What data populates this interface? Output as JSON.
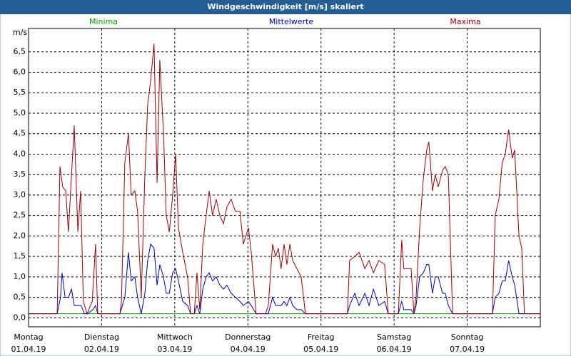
{
  "chart_data": {
    "type": "line",
    "title": "Windgeschwindigkeit [m/s] skaliert",
    "y_label": "m/s",
    "xlim": [
      0,
      168
    ],
    "ylim": [
      -0.22,
      7.07
    ],
    "xticks": [
      {
        "value": 0,
        "label": "Montag",
        "date": "01.04.19"
      },
      {
        "value": 24,
        "label": "Dienstag",
        "date": "02.04.19"
      },
      {
        "value": 48,
        "label": "Mittwoch",
        "date": "03.04.19"
      },
      {
        "value": 72,
        "label": "Donnerstag",
        "date": "04.04.19"
      },
      {
        "value": 96,
        "label": "Freitag",
        "date": "05.04.19"
      },
      {
        "value": 120,
        "label": "Samstag",
        "date": "06.04.19"
      },
      {
        "value": 144,
        "label": "Sonntag",
        "date": "07.04.19"
      }
    ],
    "yticks": [
      {
        "value": 0,
        "label": "0,0"
      },
      {
        "value": 0.5,
        "label": "0,5"
      },
      {
        "value": 1,
        "label": "1,0"
      },
      {
        "value": 1.5,
        "label": "1,5"
      },
      {
        "value": 2,
        "label": "2,0"
      },
      {
        "value": 2.5,
        "label": "2,5"
      },
      {
        "value": 3,
        "label": "3,0"
      },
      {
        "value": 3.5,
        "label": "3,5"
      },
      {
        "value": 4,
        "label": "4,0"
      },
      {
        "value": 4.5,
        "label": "4,5"
      },
      {
        "value": 5,
        "label": "5,0"
      },
      {
        "value": 5.5,
        "label": "5,5"
      },
      {
        "value": 6,
        "label": "6,0"
      },
      {
        "value": 6.5,
        "label": "6,5"
      }
    ],
    "grid": true,
    "series": [
      {
        "name": "Minima",
        "color": "#00a000",
        "x": [
          0,
          168
        ],
        "values": [
          0.1,
          0.1
        ]
      },
      {
        "name": "Mittelwerte",
        "color": "#0000c0",
        "x": [
          0,
          9.4,
          10.5,
          11.0,
          12.0,
          13.1,
          14.1,
          15.0,
          16.4,
          17.3,
          18.3,
          19.4,
          21.1,
          22.0,
          22.7,
          30.0,
          31.6,
          32.8,
          33.7,
          34.9,
          35.8,
          37.0,
          38.2,
          39.1,
          40.1,
          41.2,
          42.2,
          43.1,
          44.3,
          45.2,
          46.2,
          47.3,
          48.3,
          49.2,
          50.6,
          52.2,
          53.2,
          54.4,
          55.3,
          56.2,
          57.2,
          58.3,
          59.3,
          60.4,
          61.6,
          62.8,
          64.0,
          65.1,
          66.5,
          67.9,
          69.4,
          70.5,
          72.2,
          73.1,
          74.7,
          77.8,
          78.7,
          80.1,
          81.1,
          82.0,
          82.9,
          83.9,
          84.8,
          85.8,
          86.7,
          88.1,
          89.5,
          90.9,
          104.7,
          105.4,
          107.1,
          108.5,
          110.4,
          111.8,
          113.2,
          115.0,
          116.9,
          118.1,
          121.4,
          122.5,
          123.2,
          125.6,
          126.5,
          127.2,
          128.4,
          129.6,
          130.7,
          131.4,
          132.6,
          133.5,
          134.5,
          135.9,
          136.8,
          137.8,
          139.2,
          152.3,
          153.2,
          154.4,
          155.5,
          156.5,
          157.6,
          158.8,
          159.6,
          161.0,
          168
        ],
        "values": [
          0.1,
          0.1,
          0.5,
          1.1,
          0.5,
          0.5,
          0.7,
          0.3,
          0.3,
          0.3,
          0.1,
          0.1,
          0.2,
          0.3,
          0.1,
          0.1,
          0.5,
          1.6,
          0.9,
          1.0,
          0.5,
          0.1,
          0.6,
          1.4,
          1.8,
          1.7,
          0.8,
          1.3,
          1.0,
          0.6,
          0.6,
          1.1,
          1.2,
          0.9,
          0.4,
          0.3,
          0.1,
          0.1,
          0.3,
          0.1,
          0.7,
          1.0,
          1.1,
          0.9,
          1.0,
          0.8,
          0.7,
          0.8,
          0.6,
          0.5,
          0.4,
          0.3,
          0.4,
          0.3,
          0.1,
          0.1,
          0.1,
          0.5,
          0.3,
          0.3,
          0.3,
          0.4,
          0.3,
          0.5,
          0.3,
          0.2,
          0.2,
          0.1,
          0.1,
          0.3,
          0.6,
          0.3,
          0.6,
          0.3,
          0.7,
          0.3,
          0.4,
          0.1,
          0.1,
          0.4,
          0.2,
          0.2,
          0.1,
          0.3,
          1.0,
          1.1,
          1.3,
          1.3,
          0.6,
          1.0,
          1.0,
          0.6,
          0.6,
          0.3,
          0.1,
          0.1,
          0.5,
          0.6,
          0.9,
          0.9,
          1.4,
          1.0,
          0.8,
          0.1,
          0.1
        ]
      },
      {
        "name": "Maxima",
        "color": "#a00000",
        "x": [
          0,
          9.4,
          10.3,
          11.2,
          12.2,
          13.1,
          14.1,
          15.0,
          16.2,
          17.1,
          18.0,
          19.2,
          20.9,
          22.0,
          22.7,
          30.0,
          30.5,
          31.6,
          32.8,
          33.7,
          34.9,
          35.8,
          37.0,
          38.2,
          39.1,
          40.1,
          41.2,
          42.2,
          43.1,
          44.3,
          45.2,
          46.2,
          47.3,
          48.3,
          49.2,
          50.6,
          52.2,
          53.2,
          54.4,
          55.3,
          56.2,
          57.2,
          58.3,
          59.3,
          60.4,
          61.6,
          62.8,
          64.0,
          65.1,
          66.5,
          67.9,
          69.4,
          70.5,
          72.2,
          73.1,
          74.7,
          77.8,
          78.7,
          80.1,
          81.1,
          82.0,
          82.9,
          83.9,
          84.8,
          85.8,
          86.7,
          88.1,
          89.5,
          90.9,
          104.7,
          105.4,
          107.1,
          108.5,
          110.4,
          111.8,
          113.2,
          115.0,
          116.9,
          118.1,
          121.4,
          122.5,
          123.2,
          125.6,
          126.5,
          127.2,
          128.4,
          129.6,
          130.7,
          131.4,
          132.6,
          133.5,
          134.5,
          135.9,
          136.8,
          137.8,
          139.2,
          152.3,
          153.2,
          154.4,
          155.5,
          156.5,
          157.6,
          158.8,
          159.6,
          161.0,
          161.9,
          162.8,
          168
        ],
        "values": [
          0.1,
          0.1,
          3.7,
          3.2,
          3.1,
          2.1,
          3.5,
          4.7,
          2.1,
          3.1,
          0.4,
          0.1,
          0.4,
          1.8,
          0.1,
          0.1,
          0.4,
          3.8,
          4.5,
          3.0,
          3.1,
          2.6,
          0.5,
          3.5,
          5.2,
          5.8,
          6.7,
          3.3,
          6.3,
          4.5,
          2.5,
          2.1,
          3.0,
          4.0,
          2.2,
          1.6,
          1.0,
          0.1,
          0.1,
          1.1,
          0.2,
          1.8,
          2.5,
          3.1,
          2.5,
          2.9,
          2.5,
          2.3,
          2.7,
          2.9,
          2.6,
          2.6,
          1.8,
          2.2,
          1.6,
          0.1,
          0.1,
          0.3,
          1.8,
          1.5,
          1.7,
          1.2,
          1.8,
          1.3,
          1.8,
          1.4,
          1.2,
          1.0,
          0.1,
          0.1,
          1.4,
          1.5,
          1.6,
          1.2,
          1.4,
          1.1,
          1.4,
          1.3,
          0.1,
          0.1,
          1.9,
          1.2,
          1.2,
          0.1,
          0.5,
          2.2,
          3.4,
          4.1,
          4.3,
          3.1,
          3.5,
          3.2,
          3.6,
          3.7,
          3.5,
          0.1,
          0.1,
          2.5,
          2.9,
          3.8,
          4.0,
          4.6,
          3.9,
          4.1,
          2.0,
          1.7,
          0.1,
          0.1
        ]
      }
    ]
  }
}
